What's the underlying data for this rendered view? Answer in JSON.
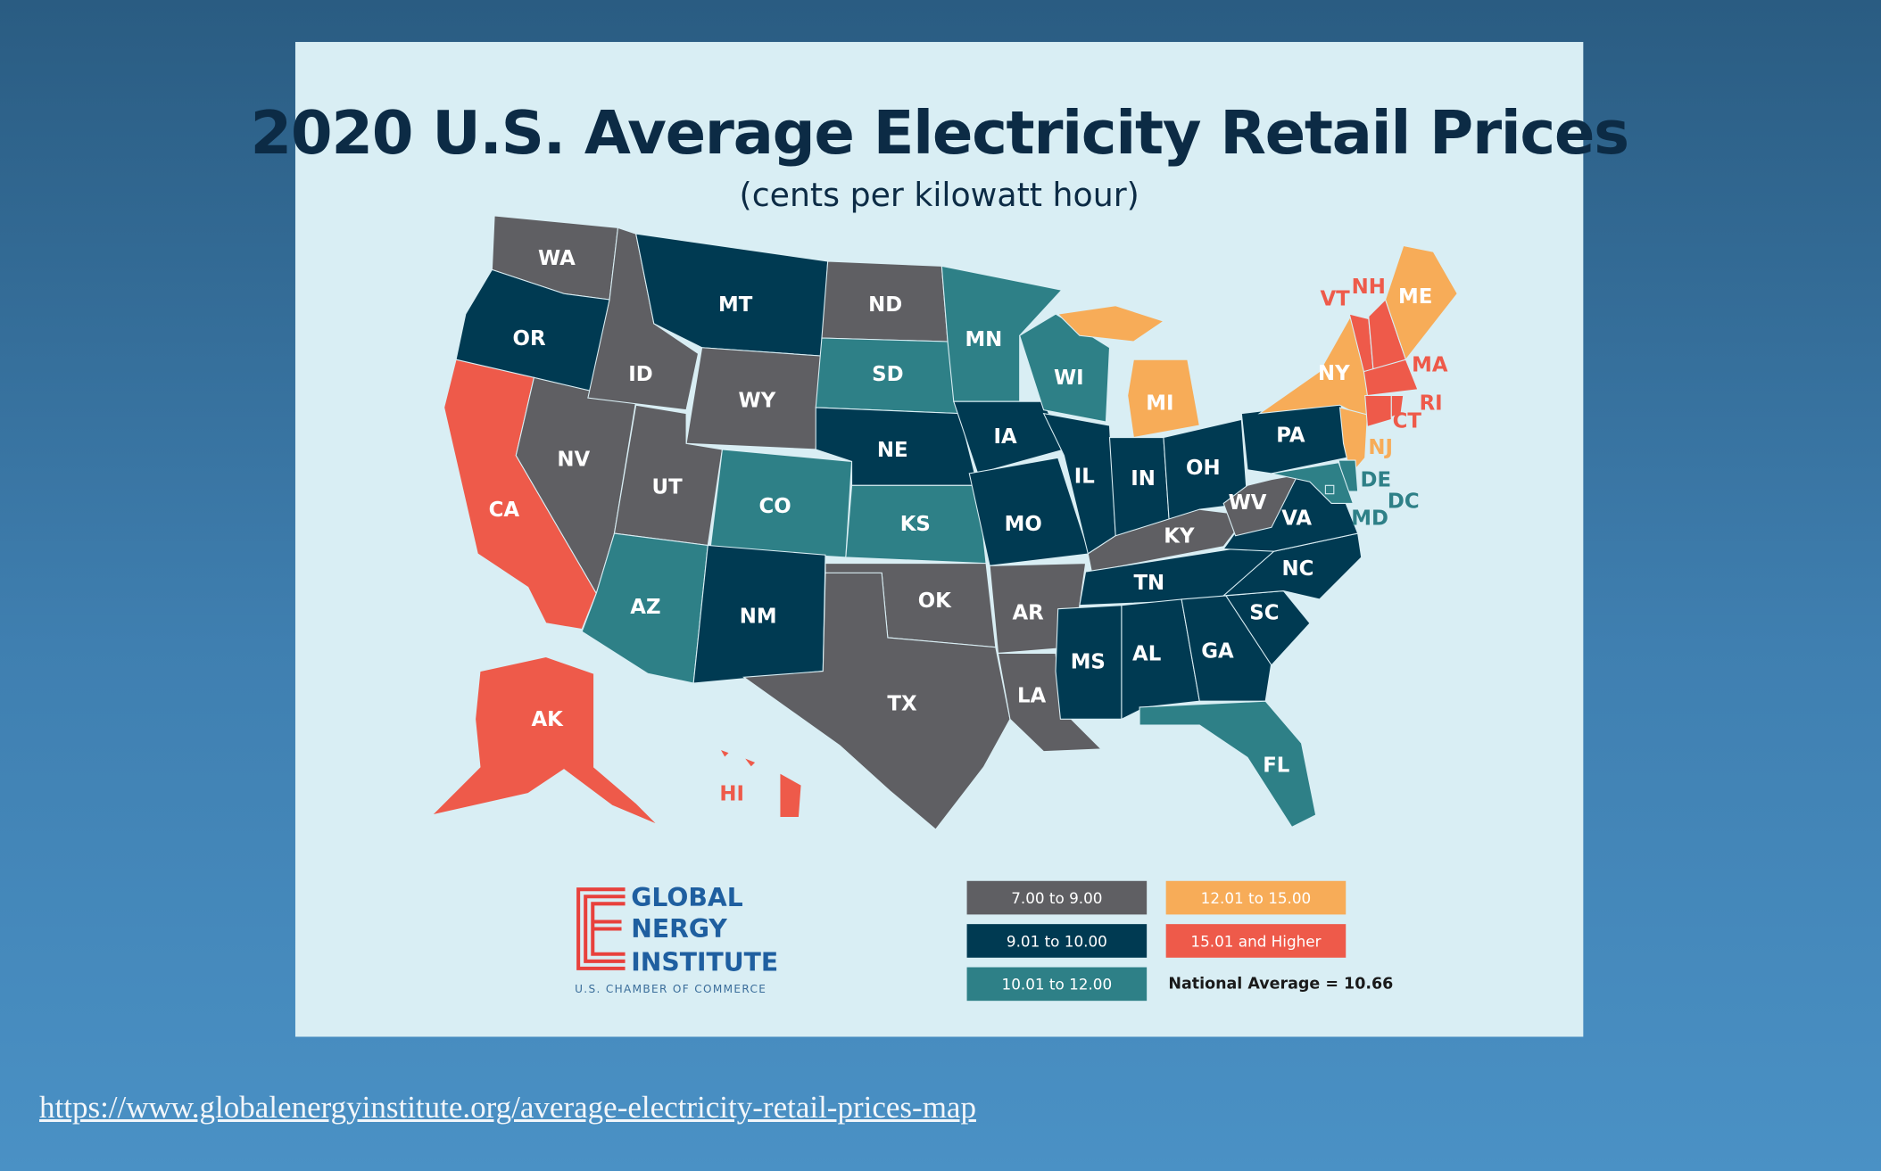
{
  "title": "2020 U.S. Average Electricity Retail Prices",
  "subtitle": "(cents per kilowatt hour)",
  "colors": {
    "7.00 to 9.00": "#5f5f63",
    "9.01 to 10.00": "#003a52",
    "10.01 to 12.00": "#2e8087",
    "12.01 to 15.00": "#f7ac58",
    "15.01 and Higher": "#ee5a4a",
    "panel": "#d9eef4",
    "title": "#0c2b45"
  },
  "legend": {
    "items": [
      {
        "label": "7.00 to 9.00",
        "color": "#5f5f63"
      },
      {
        "label": "9.01 to 10.00",
        "color": "#003a52"
      },
      {
        "label": "10.01 to 12.00",
        "color": "#2e8087"
      },
      {
        "label": "12.01 to 15.00",
        "color": "#f7ac58"
      },
      {
        "label": "15.01 and Higher",
        "color": "#ee5a4a"
      }
    ],
    "national_average": "National Average = 10.66"
  },
  "states": {
    "WA": "7.00 to 9.00",
    "OR": "9.01 to 10.00",
    "CA": "15.01 and Higher",
    "NV": "7.00 to 9.00",
    "ID": "7.00 to 9.00",
    "MT": "9.01 to 10.00",
    "WY": "7.00 to 9.00",
    "UT": "7.00 to 9.00",
    "AZ": "10.01 to 12.00",
    "CO": "10.01 to 12.00",
    "NM": "9.01 to 10.00",
    "ND": "7.00 to 9.00",
    "SD": "10.01 to 12.00",
    "NE": "9.01 to 10.00",
    "KS": "10.01 to 12.00",
    "OK": "7.00 to 9.00",
    "TX": "7.00 to 9.00",
    "MN": "10.01 to 12.00",
    "IA": "9.01 to 10.00",
    "MO": "9.01 to 10.00",
    "AR": "7.00 to 9.00",
    "LA": "7.00 to 9.00",
    "WI": "10.01 to 12.00",
    "MI": "12.01 to 15.00",
    "IL": "9.01 to 10.00",
    "IN": "9.01 to 10.00",
    "OH": "9.01 to 10.00",
    "KY": "7.00 to 9.00",
    "TN": "9.01 to 10.00",
    "MS": "9.01 to 10.00",
    "AL": "9.01 to 10.00",
    "GA": "9.01 to 10.00",
    "FL": "10.01 to 12.00",
    "SC": "9.01 to 10.00",
    "NC": "9.01 to 10.00",
    "VA": "9.01 to 10.00",
    "WV": "7.00 to 9.00",
    "PA": "9.01 to 10.00",
    "NY": "12.01 to 15.00",
    "NJ": "12.01 to 15.00",
    "DE": "10.01 to 12.00",
    "MD": "10.01 to 12.00",
    "DC": "10.01 to 12.00",
    "VT": "15.01 and Higher",
    "NH": "15.01 and Higher",
    "MA": "15.01 and Higher",
    "CT": "15.01 and Higher",
    "RI": "15.01 and Higher",
    "ME": "12.01 to 15.00",
    "AK": "15.01 and Higher",
    "HI": "15.01 and Higher"
  },
  "logo": {
    "line1": "GLOBAL",
    "line2": "NERGY",
    "line3": "INSTITUTE",
    "tagline": "U.S. CHAMBER OF COMMERCE"
  },
  "source_link": "https://www.globalenergyinstitute.org/average-electricity-retail-prices-map"
}
